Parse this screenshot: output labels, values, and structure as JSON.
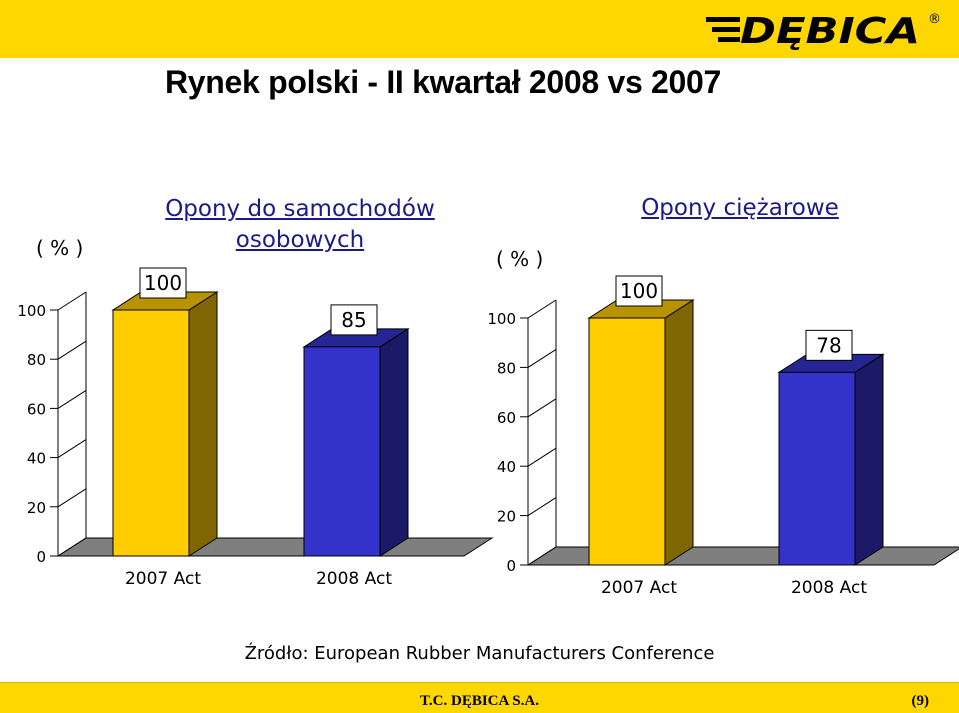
{
  "header": {
    "title": "Rynek polski - II kwartał 2008 vs  2007",
    "logo_text": "DĘBICA",
    "logo_registered": "®"
  },
  "colors": {
    "band": "#FFD700",
    "bar_2007": "#FFCC00",
    "bar_2008": "#3333CC",
    "title_blue": "#1a1a8c"
  },
  "chart_data": [
    {
      "type": "bar",
      "title": "Opony do samochodów osobowych",
      "title_lines": [
        "Opony do samochodów",
        "osobowych"
      ],
      "unit_label": "( % )",
      "categories": [
        "2007 Act",
        "2008 Act"
      ],
      "values": [
        100,
        85
      ],
      "ylim": [
        0,
        100
      ],
      "yticks": [
        0,
        20,
        40,
        60,
        80,
        100
      ],
      "grid": false,
      "legend": "none"
    },
    {
      "type": "bar",
      "title": "Opony ciężarowe",
      "title_lines": [
        "Opony ciężarowe"
      ],
      "unit_label": "( % )",
      "categories": [
        "2007 Act",
        "2008 Act"
      ],
      "values": [
        100,
        78
      ],
      "ylim": [
        0,
        100
      ],
      "yticks": [
        0,
        20,
        40,
        60,
        80,
        100
      ],
      "grid": false,
      "legend": "none"
    }
  ],
  "footer": {
    "source": "Źródło: European Rubber Manufacturers Conference",
    "company": "T.C. DĘBICA S.A.",
    "page": "(9)"
  }
}
